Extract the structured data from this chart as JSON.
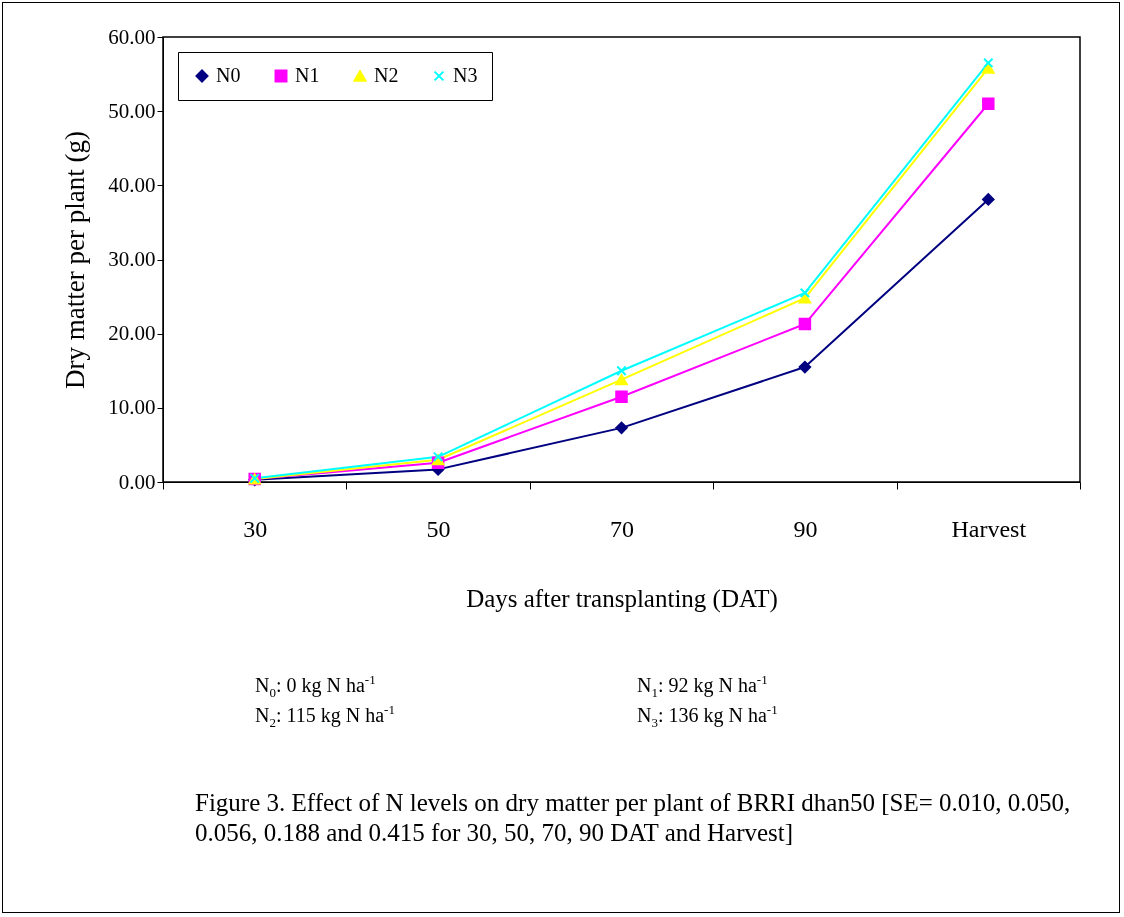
{
  "chart_data": {
    "type": "line",
    "xlabel": "Days after transplanting (DAT)",
    "ylabel": "Dry matter per plant (g)",
    "categories": [
      "30",
      "50",
      "70",
      "90",
      "Harvest"
    ],
    "ylim": [
      0,
      60
    ],
    "yticks": [
      {
        "value": 0,
        "label": "0.00"
      },
      {
        "value": 10,
        "label": "10.00"
      },
      {
        "value": 20,
        "label": "20.00"
      },
      {
        "value": 30,
        "label": "30.00"
      },
      {
        "value": 40,
        "label": "40.00"
      },
      {
        "value": 50,
        "label": "50.00"
      },
      {
        "value": 60,
        "label": "60.00"
      }
    ],
    "grid": false,
    "legend": "top left",
    "series": [
      {
        "name": "N0",
        "color": "#000080",
        "marker": "diamond",
        "values": [
          0.3,
          1.7,
          7.3,
          15.5,
          38.1
        ]
      },
      {
        "name": "N1",
        "color": "#ff00ff",
        "marker": "square",
        "values": [
          0.4,
          2.6,
          11.5,
          21.3,
          51.0
        ]
      },
      {
        "name": "N2",
        "color": "#ffff00",
        "marker": "triangle",
        "values": [
          0.4,
          3.0,
          13.8,
          24.8,
          55.8
        ]
      },
      {
        "name": "N3",
        "color": "#00ffff",
        "marker": "cross",
        "values": [
          0.5,
          3.4,
          15.0,
          25.5,
          56.5
        ]
      }
    ],
    "annotations": [
      "N$_{0}$: 0 kg N ha$^{-1}$",
      "N$_{1}$: 92 kg N ha$^{-1}$",
      "N$_{2}$: 115 kg N ha$^{-1}$",
      "N$_{3}$: 136 kg N ha$^{-1}$",
      "Figure 3. Effect of N levels on dry matter per plant of BRRI dhan50 [SE= 0.010, 0.050, 0.056, 0.188 and 0.415 for 30, 50, 70, 90 DAT and Harvest]"
    ]
  }
}
